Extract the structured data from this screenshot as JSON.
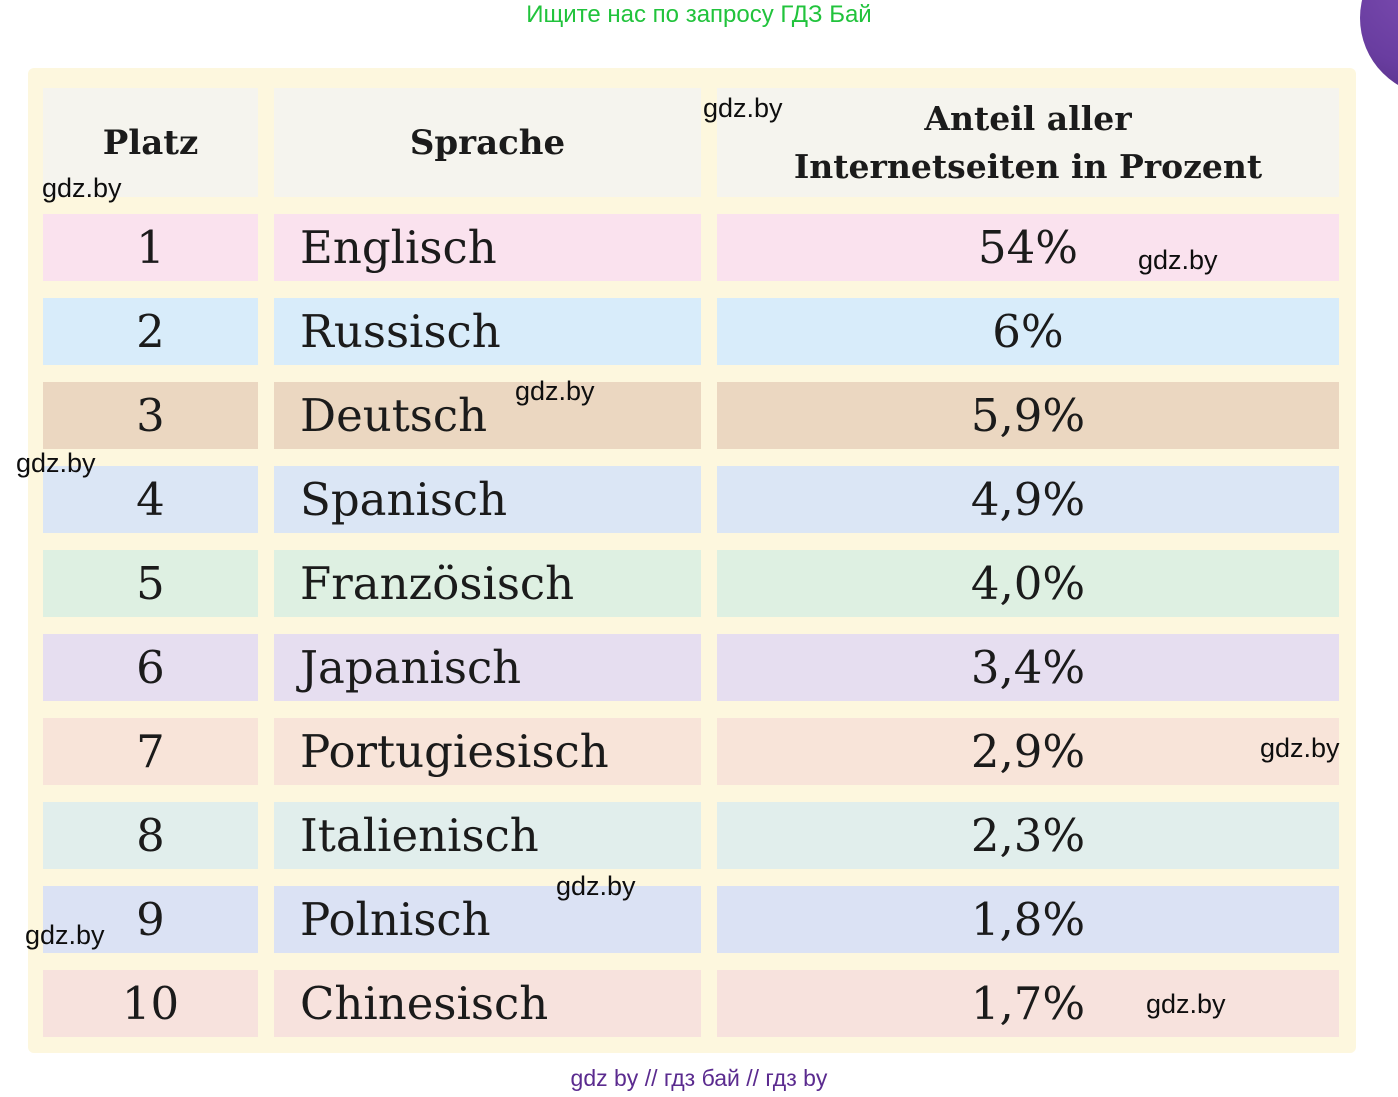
{
  "banners": {
    "top": "Ищите нас по запросу ГДЗ Бай",
    "bottom": "gdz by  //  гдз бай  //  гдз by"
  },
  "watermark": "gdz.by",
  "colors": {
    "page_background": "#ffffff",
    "card_background": "#fdf7de",
    "header_cell": "#f5f4ee",
    "top_banner_green": "#21c33c",
    "bottom_banner_purple": "#5b2b8f",
    "corner_circle_purple": "#693da0",
    "text": "#1b1b1b"
  },
  "table": {
    "header": {
      "platz": "Platz",
      "sprache": "Sprache",
      "anteil_line1": "Anteil aller",
      "anteil_line2": "Internetseiten in Prozent"
    },
    "rows": [
      {
        "platz": "1",
        "sprache": "Englisch",
        "anteil": "54%",
        "color": "#fae2ee"
      },
      {
        "platz": "2",
        "sprache": "Russisch",
        "anteil": "6%",
        "color": "#d8ecfa"
      },
      {
        "platz": "3",
        "sprache": "Deutsch",
        "anteil": "5,9%",
        "color": "#ebd7c1"
      },
      {
        "platz": "4",
        "sprache": "Spanisch",
        "anteil": "4,9%",
        "color": "#dbe6f5"
      },
      {
        "platz": "5",
        "sprache": "Französisch",
        "anteil": "4,0%",
        "color": "#def0e2"
      },
      {
        "platz": "6",
        "sprache": "Japanisch",
        "anteil": "3,4%",
        "color": "#e6def0"
      },
      {
        "platz": "7",
        "sprache": "Portugiesisch",
        "anteil": "2,9%",
        "color": "#f8e4d9"
      },
      {
        "platz": "8",
        "sprache": "Italienisch",
        "anteil": "2,3%",
        "color": "#e1eeec"
      },
      {
        "platz": "9",
        "sprache": "Polnisch",
        "anteil": "1,8%",
        "color": "#dbe2f4"
      },
      {
        "platz": "10",
        "sprache": "Chinesisch",
        "anteil": "1,7%",
        "color": "#f7e2dd"
      }
    ]
  },
  "chart_data": {
    "type": "table",
    "title": "Anteil aller Internetseiten in Prozent",
    "columns": [
      "Platz",
      "Sprache",
      "Anteil aller Internetseiten in Prozent"
    ],
    "rows": [
      [
        1,
        "Englisch",
        "54%"
      ],
      [
        2,
        "Russisch",
        "6%"
      ],
      [
        3,
        "Deutsch",
        "5,9%"
      ],
      [
        4,
        "Spanisch",
        "4,9%"
      ],
      [
        5,
        "Französisch",
        "4,0%"
      ],
      [
        6,
        "Japanisch",
        "3,4%"
      ],
      [
        7,
        "Portugiesisch",
        "2,9%"
      ],
      [
        8,
        "Italienisch",
        "2,3%"
      ],
      [
        9,
        "Polnisch",
        "1,8%"
      ],
      [
        10,
        "Chinesisch",
        "1,7%"
      ]
    ],
    "values_numeric_percent": [
      54,
      6,
      5.9,
      4.9,
      4.0,
      3.4,
      2.9,
      2.3,
      1.8,
      1.7
    ]
  }
}
